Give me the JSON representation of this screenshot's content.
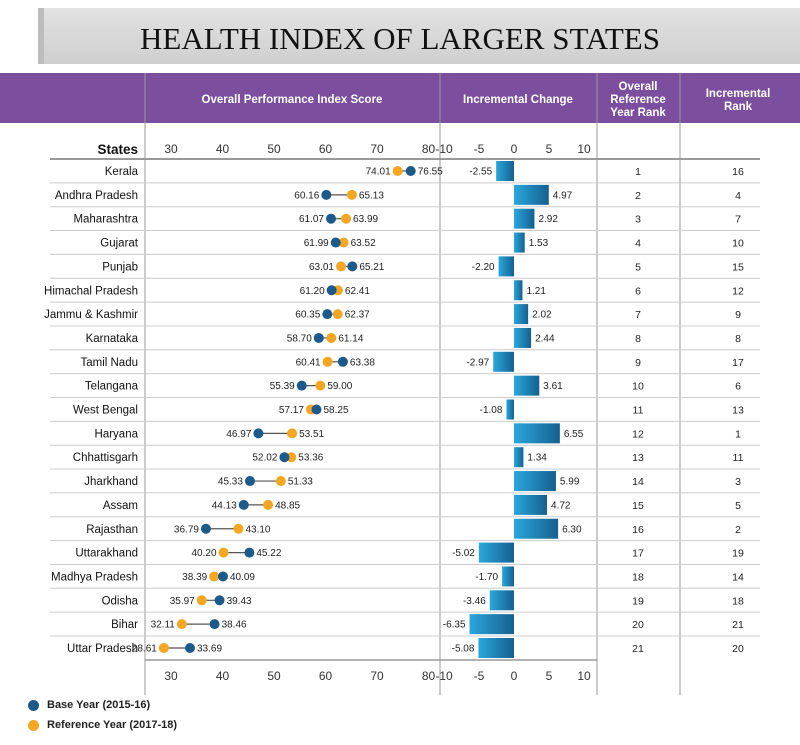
{
  "title": "HEALTH INDEX OF LARGER STATES",
  "colors": {
    "base": "#1d5a8c",
    "reference": "#f5a623",
    "header": "#7b4f9e",
    "bar_light": "#2aa7dd",
    "bar_dark": "#15608f"
  },
  "chart_data": {
    "type": "dumbbell+bar+table",
    "headers": {
      "states": "States",
      "score": "Overall Performance Index Score",
      "incremental": "Incremental Change",
      "ref_rank": [
        "Overall",
        "Reference",
        "Year Rank"
      ],
      "inc_rank": [
        "Incremental",
        "Rank"
      ]
    },
    "score_axis": {
      "range": [
        25,
        80
      ],
      "ticks": [
        30,
        40,
        50,
        60,
        70,
        80
      ]
    },
    "inc_axis": {
      "range": [
        -10,
        10
      ],
      "ticks": [
        -10,
        -5,
        0,
        5,
        10
      ]
    },
    "legend": [
      {
        "name": "Base Year (2015-16)",
        "color": "#1d5a8c"
      },
      {
        "name": "Reference Year (2017-18)",
        "color": "#f5a623"
      }
    ],
    "rows": [
      {
        "state": "Kerala",
        "base": 76.55,
        "reference": 74.01,
        "incremental": -2.55,
        "ref_rank": 1,
        "inc_rank": 16
      },
      {
        "state": "Andhra Pradesh",
        "base": 60.16,
        "reference": 65.13,
        "incremental": 4.97,
        "ref_rank": 2,
        "inc_rank": 4
      },
      {
        "state": "Maharashtra",
        "base": 61.07,
        "reference": 63.99,
        "incremental": 2.92,
        "ref_rank": 3,
        "inc_rank": 7
      },
      {
        "state": "Gujarat",
        "base": 61.99,
        "reference": 63.52,
        "incremental": 1.53,
        "ref_rank": 4,
        "inc_rank": 10
      },
      {
        "state": "Punjab",
        "base": 65.21,
        "reference": 63.01,
        "incremental": -2.2,
        "ref_rank": 5,
        "inc_rank": 15
      },
      {
        "state": "Himachal Pradesh",
        "base": 61.2,
        "reference": 62.41,
        "incremental": 1.21,
        "ref_rank": 6,
        "inc_rank": 12
      },
      {
        "state": "Jammu & Kashmir",
        "base": 60.35,
        "reference": 62.37,
        "incremental": 2.02,
        "ref_rank": 7,
        "inc_rank": 9
      },
      {
        "state": "Karnataka",
        "base": 58.7,
        "reference": 61.14,
        "incremental": 2.44,
        "ref_rank": 8,
        "inc_rank": 8
      },
      {
        "state": "Tamil Nadu",
        "base": 63.38,
        "reference": 60.41,
        "incremental": -2.97,
        "ref_rank": 9,
        "inc_rank": 17
      },
      {
        "state": "Telangana",
        "base": 55.39,
        "reference": 59.0,
        "incremental": 3.61,
        "ref_rank": 10,
        "inc_rank": 6
      },
      {
        "state": "West Bengal",
        "base": 58.25,
        "reference": 57.17,
        "incremental": -1.08,
        "ref_rank": 11,
        "inc_rank": 13
      },
      {
        "state": "Haryana",
        "base": 46.97,
        "reference": 53.51,
        "incremental": 6.55,
        "ref_rank": 12,
        "inc_rank": 1
      },
      {
        "state": "Chhattisgarh",
        "base": 52.02,
        "reference": 53.36,
        "incremental": 1.34,
        "ref_rank": 13,
        "inc_rank": 11
      },
      {
        "state": "Jharkhand",
        "base": 45.33,
        "reference": 51.33,
        "incremental": 5.99,
        "ref_rank": 14,
        "inc_rank": 3
      },
      {
        "state": "Assam",
        "base": 44.13,
        "reference": 48.85,
        "incremental": 4.72,
        "ref_rank": 15,
        "inc_rank": 5
      },
      {
        "state": "Rajasthan",
        "base": 36.79,
        "reference": 43.1,
        "incremental": 6.3,
        "ref_rank": 16,
        "inc_rank": 2
      },
      {
        "state": "Uttarakhand",
        "base": 45.22,
        "reference": 40.2,
        "incremental": -5.02,
        "ref_rank": 17,
        "inc_rank": 19
      },
      {
        "state": "Madhya Pradesh",
        "base": 40.09,
        "reference": 38.39,
        "incremental": -1.7,
        "ref_rank": 18,
        "inc_rank": 14
      },
      {
        "state": "Odisha",
        "base": 39.43,
        "reference": 35.97,
        "incremental": -3.46,
        "ref_rank": 19,
        "inc_rank": 18
      },
      {
        "state": "Bihar",
        "base": 38.46,
        "reference": 32.11,
        "incremental": -6.35,
        "ref_rank": 20,
        "inc_rank": 21
      },
      {
        "state": "Uttar Pradesh",
        "base": 33.69,
        "reference": 28.61,
        "incremental": -5.08,
        "ref_rank": 21,
        "inc_rank": 20
      }
    ]
  }
}
